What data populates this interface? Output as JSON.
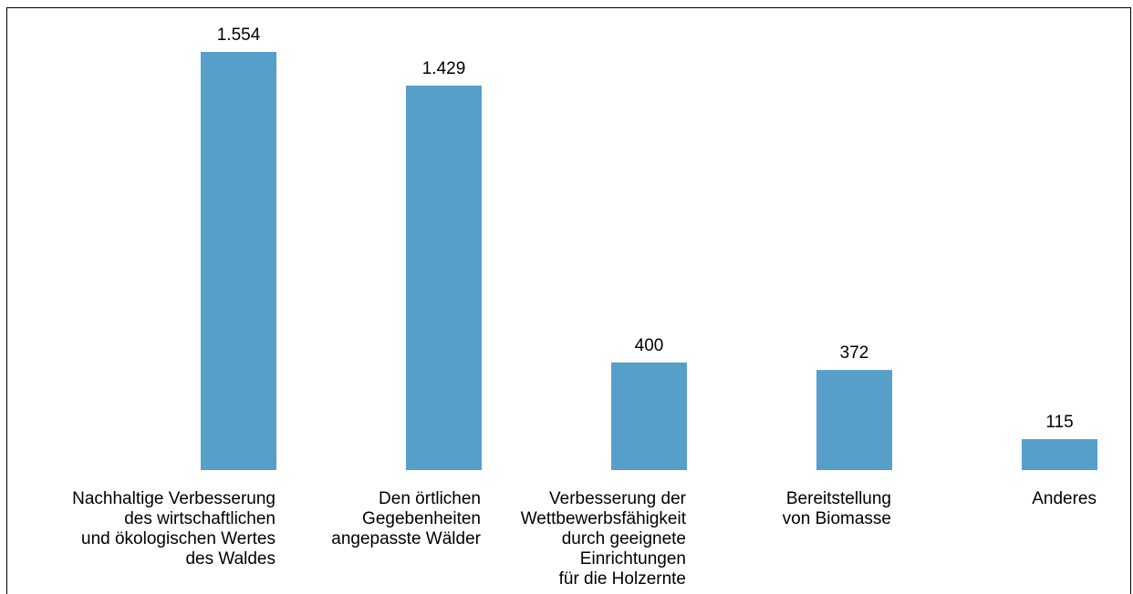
{
  "chart_data": {
    "type": "bar",
    "categories": [
      [
        "Nachhaltige Verbesserung",
        "des wirtschaftlichen",
        "und ökologischen Wertes",
        "des Waldes"
      ],
      [
        "Den örtlichen",
        "Gegebenheiten",
        "angepasste Wälder"
      ],
      [
        "Verbesserung der",
        "Wettbewerbsfähigkeit",
        "durch geeignete",
        "Einrichtungen",
        "für die Holzernte"
      ],
      [
        "Bereitstellung",
        "von Biomasse"
      ],
      [
        "Anderes"
      ]
    ],
    "values": [
      1554,
      1429,
      400,
      372,
      115
    ],
    "value_labels": [
      "1.554",
      "1.429",
      "400",
      "372",
      "115"
    ],
    "color": "#569fc9"
  }
}
